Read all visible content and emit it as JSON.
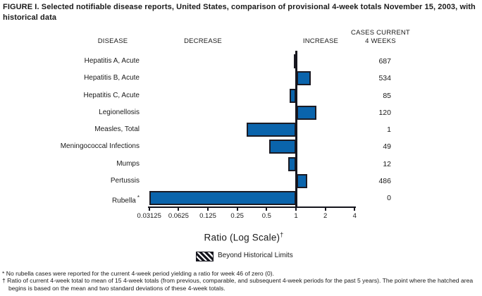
{
  "title": "FIGURE I. Selected notifiable disease reports, United States, comparison of provisional 4-week totals November 15, 2003, with historical data",
  "columns": {
    "disease": "DISEASE",
    "decrease": "DECREASE",
    "increase": "INCREASE",
    "cases_line1": "CASES CURRENT",
    "cases_line2": "4 WEEKS"
  },
  "chart_data": {
    "type": "bar",
    "orientation": "horizontal",
    "scale": "log2",
    "baseline": 1,
    "xlim": [
      0.03125,
      4
    ],
    "axis_tick_labels": [
      "0.03125",
      "0.0625",
      "0.125",
      "0.25",
      "0.5",
      "1",
      "2",
      "4"
    ],
    "xlabel": "Ratio (Log Scale)",
    "xlabel_superscript": "†",
    "bar_color": "#0a64ac",
    "bar_border_color": "#1b1b24",
    "rows": [
      {
        "label": "Hepatitis A, Acute",
        "ratio": 0.95,
        "cases": "687"
      },
      {
        "label": "Hepatitis B, Acute",
        "ratio": 1.42,
        "cases": "534"
      },
      {
        "label": "Hepatitis C, Acute",
        "ratio": 0.86,
        "cases": "85"
      },
      {
        "label": "Legionellosis",
        "ratio": 1.62,
        "cases": "120"
      },
      {
        "label": "Measles, Total",
        "ratio": 0.31,
        "cases": "1"
      },
      {
        "label": "Meningococcal Infections",
        "ratio": 0.53,
        "cases": "49"
      },
      {
        "label": "Mumps",
        "ratio": 0.83,
        "cases": "12"
      },
      {
        "label": "Pertussis",
        "ratio": 1.3,
        "cases": "486"
      },
      {
        "label": "Rubella",
        "label_superscript": "*",
        "ratio": 0,
        "cases": "0"
      }
    ],
    "legend": {
      "label": "Beyond Historical Limits",
      "swatch": "diagonal-hatch"
    }
  },
  "footnotes": [
    {
      "marker": "*",
      "text": "No rubella cases were reported for the current 4-week period yielding a ratio for week 46 of zero (0)."
    },
    {
      "marker": "†",
      "text": "Ratio of current 4-week total to mean of 15 4-week totals (from previous, comparable, and subsequent 4-week periods for the past 5 years). The point where the hatched area begins is based on the mean and two standard deviations of these 4-week totals."
    }
  ]
}
